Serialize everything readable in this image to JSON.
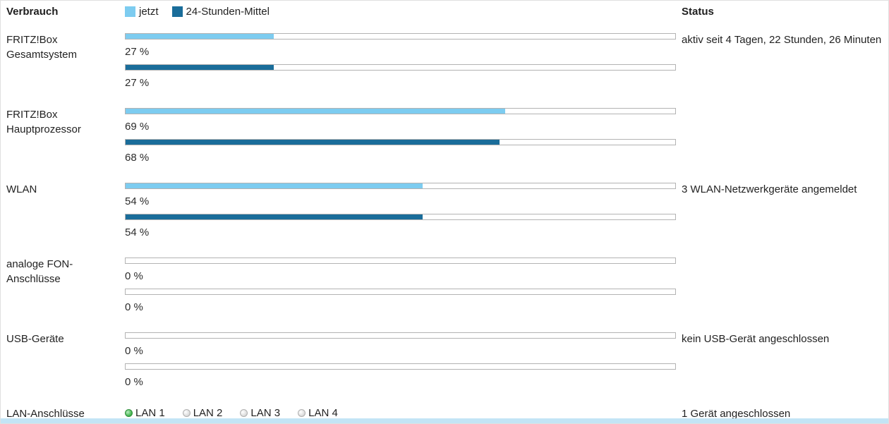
{
  "header": {
    "title": "Verbrauch",
    "status_title": "Status",
    "legend": [
      {
        "label": "jetzt",
        "color": "#7dccf0"
      },
      {
        "label": "24-Stunden-Mittel",
        "color": "#1a6d9a"
      }
    ]
  },
  "colors": {
    "now": "#7dccf0",
    "avg": "#1a6d9a",
    "bottom_strip": "#c3e4f5"
  },
  "rows": [
    {
      "label": "FRITZ!Box Gesamtsystem",
      "now_percent": 27,
      "avg_percent": 27,
      "now_label": "27 %",
      "avg_label": "27 %",
      "status": "aktiv seit 4 Tagen, 22 Stunden, 26 Minuten"
    },
    {
      "label": "FRITZ!Box Hauptprozessor",
      "now_percent": 69,
      "avg_percent": 68,
      "now_label": "69 %",
      "avg_label": "68 %",
      "status": ""
    },
    {
      "label": "WLAN",
      "now_percent": 54,
      "avg_percent": 54,
      "now_label": "54 %",
      "avg_label": "54 %",
      "status": "3 WLAN-Netzwerkgeräte angemeldet"
    },
    {
      "label": "analoge FON-Anschlüsse",
      "now_percent": 0,
      "avg_percent": 0,
      "now_label": "0 %",
      "avg_label": "0 %",
      "status": ""
    },
    {
      "label": "USB-Geräte",
      "now_percent": 0,
      "avg_percent": 0,
      "now_label": "0 %",
      "avg_label": "0 %",
      "status": "kein USB-Gerät angeschlossen"
    }
  ],
  "lan": {
    "label": "LAN-Anschlüsse",
    "ports": [
      {
        "label": "LAN 1",
        "active": true
      },
      {
        "label": "LAN 2",
        "active": false
      },
      {
        "label": "LAN 3",
        "active": false
      },
      {
        "label": "LAN 4",
        "active": false
      }
    ],
    "status": "1 Gerät angeschlossen"
  }
}
